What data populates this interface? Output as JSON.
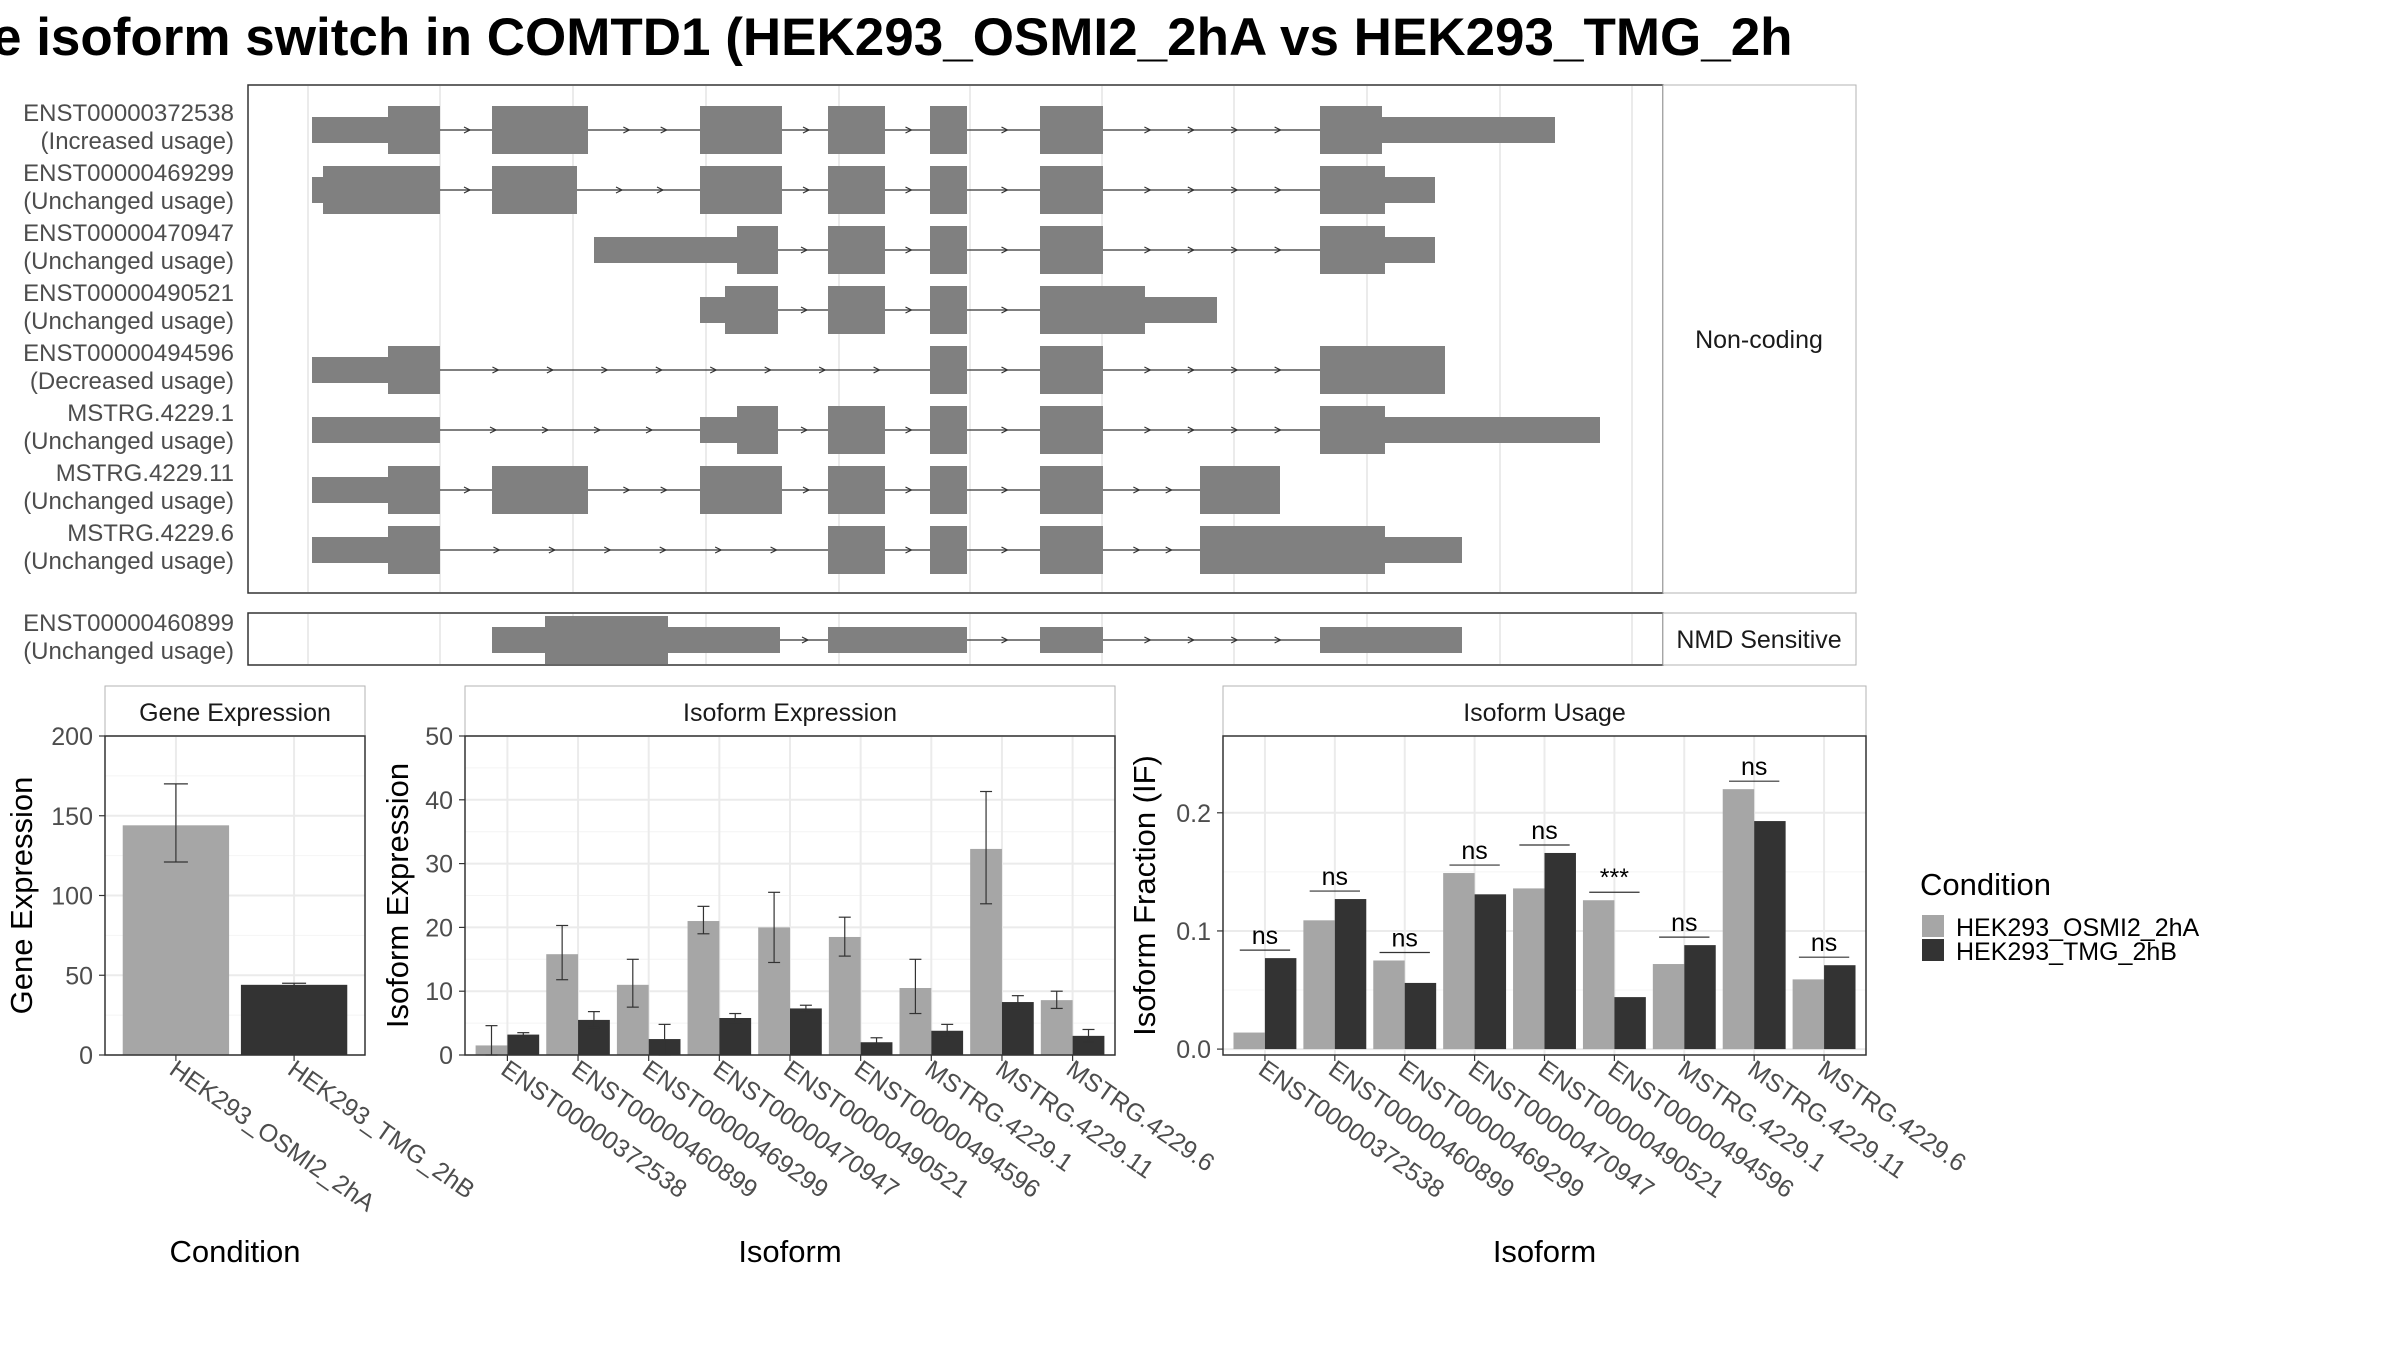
{
  "title": "e isoform switch in COMTD1 (HEK293_OSMI2_2hA vs HEK293_TMG_2h",
  "colors": {
    "exon": "#808080",
    "osmi": "#a6a6a6",
    "tmg": "#333333",
    "grid": "#ebebeb",
    "panel_border": "#333333",
    "strip_border": "#b3b3b3"
  },
  "structure": {
    "facets": [
      "Non-coding",
      "NMD Sensitive"
    ],
    "transcripts": [
      {
        "id": "ENST00000372538",
        "usage": "(Increased usage)",
        "facet": "Non-coding"
      },
      {
        "id": "ENST00000469299",
        "usage": "(Unchanged usage)",
        "facet": "Non-coding"
      },
      {
        "id": "ENST00000470947",
        "usage": "(Unchanged usage)",
        "facet": "Non-coding"
      },
      {
        "id": "ENST00000490521",
        "usage": "(Unchanged usage)",
        "facet": "Non-coding"
      },
      {
        "id": "ENST00000494596",
        "usage": "(Decreased usage)",
        "facet": "Non-coding"
      },
      {
        "id": "MSTRG.4229.1",
        "usage": "(Unchanged usage)",
        "facet": "Non-coding"
      },
      {
        "id": "MSTRG.4229.11",
        "usage": "(Unchanged usage)",
        "facet": "Non-coding"
      },
      {
        "id": "MSTRG.4229.6",
        "usage": "(Unchanged usage)",
        "facet": "Non-coding"
      },
      {
        "id": "ENST00000460899",
        "usage": "(Unchanged usage)",
        "facet": "NMD Sensitive"
      }
    ]
  },
  "legend": {
    "title": "Condition",
    "items": [
      "HEK293_OSMI2_2hA",
      "HEK293_TMG_2hB"
    ]
  },
  "chart_data": [
    {
      "type": "bar",
      "title": "Gene Expression",
      "xlabel": "Condition",
      "ylabel": "Gene Expression",
      "ylim": [
        0,
        200
      ],
      "yticks": [
        0,
        50,
        100,
        150,
        200
      ],
      "categories": [
        "HEK293_OSMI2_2hA",
        "HEK293_TMG_2hB"
      ],
      "values": [
        144,
        44
      ],
      "err_low": [
        121,
        43
      ],
      "err_high": [
        170,
        45
      ]
    },
    {
      "type": "bar",
      "title": "Isoform Expression",
      "xlabel": "Isoform",
      "ylabel": "Isoform Expression",
      "ylim": [
        0,
        50
      ],
      "yticks": [
        0,
        10,
        20,
        30,
        40,
        50
      ],
      "categories": [
        "ENST00000372538",
        "ENST00000460899",
        "ENST00000469299",
        "ENST00000470947",
        "ENST00000490521",
        "ENST00000494596",
        "MSTRG.4229.1",
        "MSTRG.4229.11",
        "MSTRG.4229.6"
      ],
      "series": [
        {
          "name": "HEK293_OSMI2_2hA",
          "values": [
            1.5,
            15.8,
            11.0,
            21.0,
            20.0,
            18.5,
            10.5,
            32.3,
            8.6
          ],
          "err_low": [
            0,
            11.8,
            7.5,
            19.0,
            14.5,
            15.5,
            6.5,
            23.7,
            7.3
          ],
          "err_high": [
            4.6,
            20.3,
            15.0,
            23.3,
            25.5,
            21.6,
            15.0,
            41.3,
            10.0
          ]
        },
        {
          "name": "HEK293_TMG_2hB",
          "values": [
            3.2,
            5.5,
            2.5,
            5.8,
            7.3,
            2.0,
            3.8,
            8.3,
            3.0
          ],
          "err_low": [
            2.8,
            4.3,
            0,
            5.0,
            6.8,
            1.3,
            2.8,
            7.3,
            2.0
          ],
          "err_high": [
            3.5,
            6.8,
            4.8,
            6.5,
            7.8,
            2.7,
            4.8,
            9.3,
            4.0
          ]
        }
      ]
    },
    {
      "type": "bar",
      "title": "Isoform Usage",
      "xlabel": "Isoform",
      "ylabel": "Isoform Fraction (IF)",
      "ylim": [
        -0.005,
        0.265
      ],
      "yticks": [
        0.0,
        0.1,
        0.2
      ],
      "ytick_labels": [
        "0.0",
        "0.1",
        "0.2"
      ],
      "categories": [
        "ENST00000372538",
        "ENST00000460899",
        "ENST00000469299",
        "ENST00000470947",
        "ENST00000490521",
        "ENST00000494596",
        "MSTRG.4229.1",
        "MSTRG.4229.11",
        "MSTRG.4229.6"
      ],
      "series": [
        {
          "name": "HEK293_OSMI2_2hA",
          "values": [
            0.014,
            0.109,
            0.075,
            0.149,
            0.136,
            0.126,
            0.072,
            0.22,
            0.059
          ]
        },
        {
          "name": "HEK293_TMG_2hB",
          "values": [
            0.077,
            0.127,
            0.056,
            0.131,
            0.166,
            0.044,
            0.088,
            0.193,
            0.071
          ]
        }
      ],
      "significance": [
        "ns",
        "ns",
        "ns",
        "ns",
        "ns",
        "***",
        "ns",
        "ns",
        "ns"
      ]
    }
  ]
}
